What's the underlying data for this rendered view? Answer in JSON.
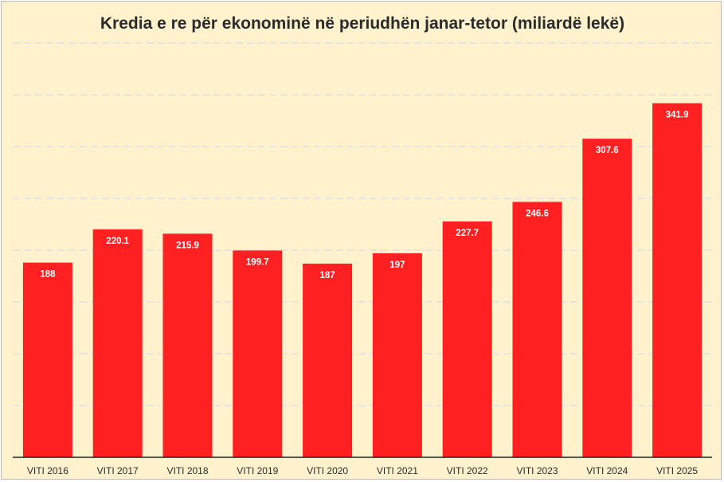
{
  "chart_data": {
    "type": "bar",
    "title": "Kredia e re për ekonominë në periudhën janar-tetor (miliardë lekë)",
    "categories": [
      "VITI 2016",
      "VITI 2017",
      "VITI 2018",
      "VITI 2019",
      "VITI 2020",
      "VITI 2021",
      "VITI 2022",
      "VITI 2023",
      "VITI 2024",
      "VITI 2025"
    ],
    "values": [
      188,
      220.1,
      215.9,
      199.7,
      187,
      197,
      227.7,
      246.6,
      307.6,
      341.9
    ],
    "value_labels": [
      "188",
      "220.1",
      "215.9",
      "199.7",
      "187",
      "197",
      "227.7",
      "246.6",
      "307.6",
      "341.9"
    ],
    "ylim": [
      0,
      400
    ],
    "gridlines": [
      50,
      100,
      150,
      200,
      250,
      300,
      350,
      400
    ],
    "grid": true,
    "legend": "none",
    "colors": {
      "bar": "#ff2121",
      "background": "#fff2cc",
      "grid": "#d6dce6"
    }
  }
}
